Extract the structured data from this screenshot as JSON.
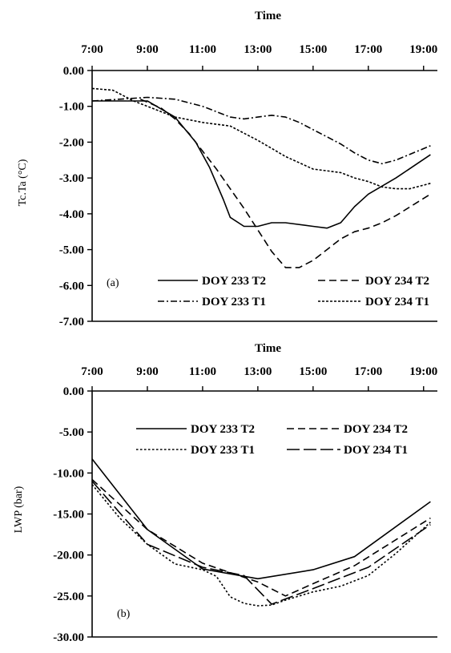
{
  "chart_data": [
    {
      "type": "line",
      "title": "Time",
      "panel_label": "(a)",
      "ylabel": "Tc.Ta (°C)",
      "x_ticks": [
        "7:00",
        "9:00",
        "11:00",
        "13:00",
        "15:00",
        "17:00",
        "19:00"
      ],
      "y_ticks": [
        "0.00",
        "-1.00",
        "-2.00",
        "-3.00",
        "-4.00",
        "-5.00",
        "-6.00",
        "-7.00"
      ],
      "xlim": [
        "7:00",
        "19:30"
      ],
      "ylim": [
        -7,
        0
      ],
      "legend_position": "bottom",
      "series": [
        {
          "name": "DOY 233 T2",
          "style": "solid",
          "x": [
            "7:00",
            "8:00",
            "9:00",
            "10:00",
            "10:45",
            "11:15",
            "11:45",
            "12:00",
            "12:30",
            "13:00",
            "13:30",
            "14:00",
            "15:00",
            "15:30",
            "16:00",
            "16:30",
            "17:00",
            "18:00",
            "19:15"
          ],
          "y": [
            -0.85,
            -0.85,
            -0.85,
            -1.3,
            -2.0,
            -2.7,
            -3.6,
            -4.1,
            -4.35,
            -4.35,
            -4.25,
            -4.25,
            -4.35,
            -4.4,
            -4.25,
            -3.8,
            -3.45,
            -3.0,
            -2.35
          ]
        },
        {
          "name": "DOY 234 T2",
          "style": "dashed",
          "x": [
            "8:45",
            "9:30",
            "10:00",
            "10:30",
            "11:00",
            "11:30",
            "12:00",
            "12:30",
            "13:00",
            "13:30",
            "14:00",
            "14:30",
            "15:00",
            "15:30",
            "16:00",
            "16:30",
            "17:00",
            "17:30",
            "18:00",
            "19:15"
          ],
          "y": [
            -0.8,
            -1.05,
            -1.35,
            -1.75,
            -2.25,
            -2.75,
            -3.3,
            -3.85,
            -4.45,
            -5.05,
            -5.5,
            -5.5,
            -5.3,
            -5.0,
            -4.7,
            -4.5,
            -4.4,
            -4.25,
            -4.05,
            -3.45
          ]
        },
        {
          "name": "DOY 233 T1",
          "style": "dash-dot",
          "x": [
            "7:00",
            "8:00",
            "9:00",
            "10:00",
            "11:00",
            "11:30",
            "12:00",
            "12:30",
            "13:00",
            "13:30",
            "14:00",
            "14:30",
            "15:00",
            "15:30",
            "16:00",
            "16:30",
            "17:00",
            "17:30",
            "18:00",
            "19:15"
          ],
          "y": [
            -0.85,
            -0.8,
            -0.75,
            -0.8,
            -1.0,
            -1.15,
            -1.3,
            -1.35,
            -1.3,
            -1.25,
            -1.3,
            -1.45,
            -1.65,
            -1.85,
            -2.05,
            -2.3,
            -2.5,
            -2.6,
            -2.5,
            -2.1
          ]
        },
        {
          "name": "DOY 234 T1",
          "style": "dense-dash",
          "x": [
            "7:00",
            "7:45",
            "8:30",
            "9:00",
            "10:00",
            "11:00",
            "11:30",
            "12:00",
            "13:00",
            "14:00",
            "15:00",
            "15:30",
            "16:00",
            "16:30",
            "17:00",
            "17:30",
            "18:00",
            "18:30",
            "19:15"
          ],
          "y": [
            -0.5,
            -0.55,
            -0.85,
            -1.0,
            -1.3,
            -1.45,
            -1.5,
            -1.55,
            -1.95,
            -2.4,
            -2.75,
            -2.8,
            -2.85,
            -3.0,
            -3.1,
            -3.25,
            -3.3,
            -3.3,
            -3.15
          ]
        }
      ]
    },
    {
      "type": "line",
      "title": "Time",
      "panel_label": "(b)",
      "ylabel": "LWP (bar)",
      "x_ticks": [
        "7:00",
        "9:00",
        "11:00",
        "13:00",
        "15:00",
        "17:00",
        "19:00"
      ],
      "y_ticks": [
        "0.00",
        "-5.00",
        "-10.00",
        "-15.00",
        "-20.00",
        "-25.00",
        "-30.00"
      ],
      "xlim": [
        "7:00",
        "19:30"
      ],
      "ylim": [
        -30,
        0
      ],
      "legend_position": "top",
      "series": [
        {
          "name": "DOY 233 T2",
          "style": "solid",
          "x": [
            "7:00",
            "9:00",
            "11:00",
            "13:00",
            "15:00",
            "16:30",
            "19:15"
          ],
          "y": [
            -8.3,
            -16.9,
            -21.7,
            -22.9,
            -21.8,
            -20.2,
            -13.5
          ]
        },
        {
          "name": "DOY 234 T2",
          "style": "dashed",
          "x": [
            "7:00",
            "9:00",
            "11:00",
            "13:00",
            "14:00",
            "15:00",
            "16:30",
            "19:15"
          ],
          "y": [
            -10.8,
            -16.9,
            -21.0,
            -23.3,
            -25.0,
            -23.5,
            -21.3,
            -15.5
          ]
        },
        {
          "name": "DOY 233 T1",
          "style": "dotted",
          "x": [
            "7:00",
            "8:00",
            "9:00",
            "10:00",
            "11:00",
            "11:30",
            "12:00",
            "12:30",
            "13:00",
            "13:30",
            "14:00",
            "15:00",
            "16:00",
            "17:00",
            "18:00",
            "19:15"
          ],
          "y": [
            -11.4,
            -15.5,
            -18.7,
            -21.1,
            -21.8,
            -22.6,
            -25.1,
            -25.9,
            -26.2,
            -26.1,
            -25.5,
            -24.5,
            -23.8,
            -22.5,
            -19.8,
            -16.0
          ]
        },
        {
          "name": "DOY 234 T1",
          "style": "long-dash",
          "x": [
            "7:00",
            "9:00",
            "11:00",
            "12:30",
            "13:30",
            "15:00",
            "17:00",
            "19:15"
          ],
          "y": [
            -11.0,
            -18.7,
            -21.5,
            -22.5,
            -26.0,
            -24.1,
            -21.5,
            -16.3
          ]
        }
      ]
    }
  ]
}
